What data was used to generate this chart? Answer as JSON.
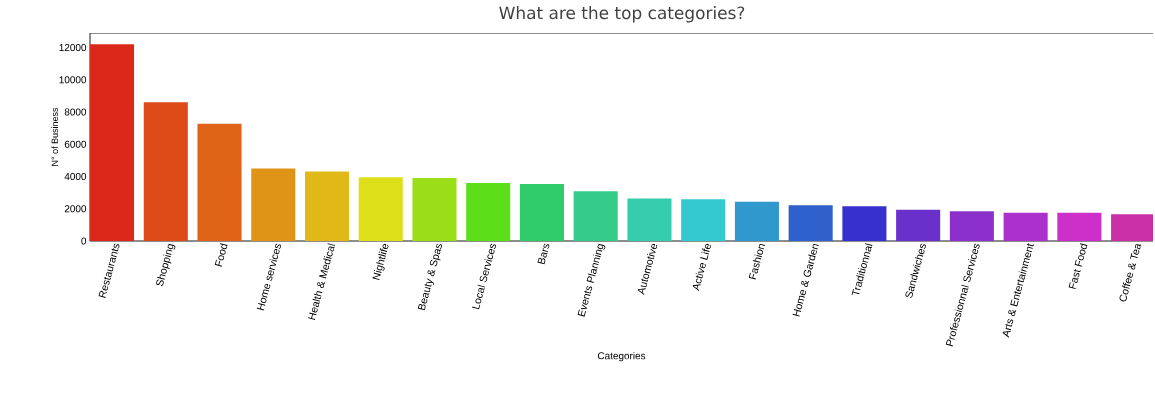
{
  "chart_data": {
    "type": "bar",
    "title": "What are the top categories?",
    "xlabel": "Categories",
    "ylabel": "N° of Business",
    "categories": [
      "Restaurants",
      "Shopping",
      "Food",
      "Home services",
      "Health & Medical",
      "Nightlife",
      "Beauty & Spas",
      "Local Services",
      "Bars",
      "Events Planning",
      "Automotive",
      "Active Life",
      "Fashion",
      "Home & Garden",
      "Traditionnal",
      "Sandwiches",
      "Professionnal Services",
      "Arts & Entertainment",
      "Fast Food",
      "Coffee & Tea"
    ],
    "values": [
      12200,
      8600,
      7270,
      4500,
      4310,
      3960,
      3910,
      3590,
      3540,
      3080,
      2640,
      2590,
      2430,
      2220,
      2150,
      1940,
      1850,
      1750,
      1750,
      1660
    ],
    "colors": [
      "#dc2818",
      "#de4a18",
      "#df6418",
      "#df9418",
      "#e0b818",
      "#dde018",
      "#9ade18",
      "#5cde18",
      "#30cc6c",
      "#34cc88",
      "#34ccac",
      "#34c8d0",
      "#3098cc",
      "#3060cc",
      "#3830cc",
      "#6a30cc",
      "#8c30cc",
      "#ac30cc",
      "#cc30c8",
      "#cc30a8"
    ],
    "ylim": [
      0,
      12900
    ],
    "yticks": [
      0,
      2000,
      4000,
      6000,
      8000,
      10000,
      12000
    ],
    "grid": false
  }
}
